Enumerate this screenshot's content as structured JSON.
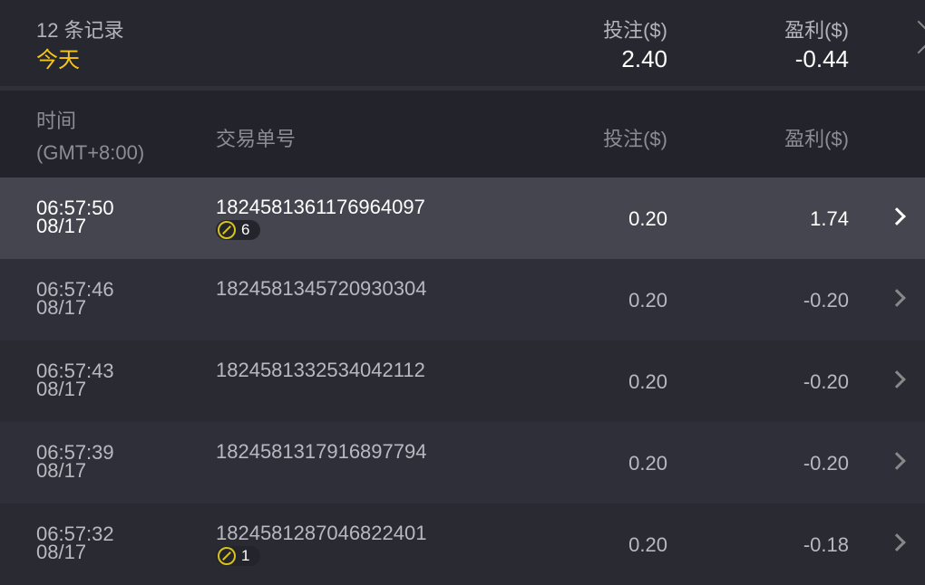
{
  "summary": {
    "count": "12 条记录",
    "period": "今天",
    "bet_label": "投注($)",
    "bet_total": "2.40",
    "profit_label": "盈利($)",
    "profit_total": "-0.44"
  },
  "columns": {
    "time": "时间",
    "timezone": "(GMT+8:00)",
    "order": "交易单号",
    "bet": "投注($)",
    "profit": "盈利($)"
  },
  "accent_color": "#f5c518",
  "rows": [
    {
      "time": "06:57:50",
      "date": "08/17",
      "order": "1824581361176964097",
      "badge": "6",
      "bet": "0.20",
      "profit": "1.74"
    },
    {
      "time": "06:57:46",
      "date": "08/17",
      "order": "1824581345720930304",
      "bet": "0.20",
      "profit": "-0.20"
    },
    {
      "time": "06:57:43",
      "date": "08/17",
      "order": "1824581332534042112",
      "bet": "0.20",
      "profit": "-0.20"
    },
    {
      "time": "06:57:39",
      "date": "08/17",
      "order": "1824581317916897794",
      "bet": "0.20",
      "profit": "-0.20"
    },
    {
      "time": "06:57:32",
      "date": "08/17",
      "order": "1824581287046822401",
      "badge": "1",
      "bet": "0.20",
      "profit": "-0.18"
    }
  ]
}
